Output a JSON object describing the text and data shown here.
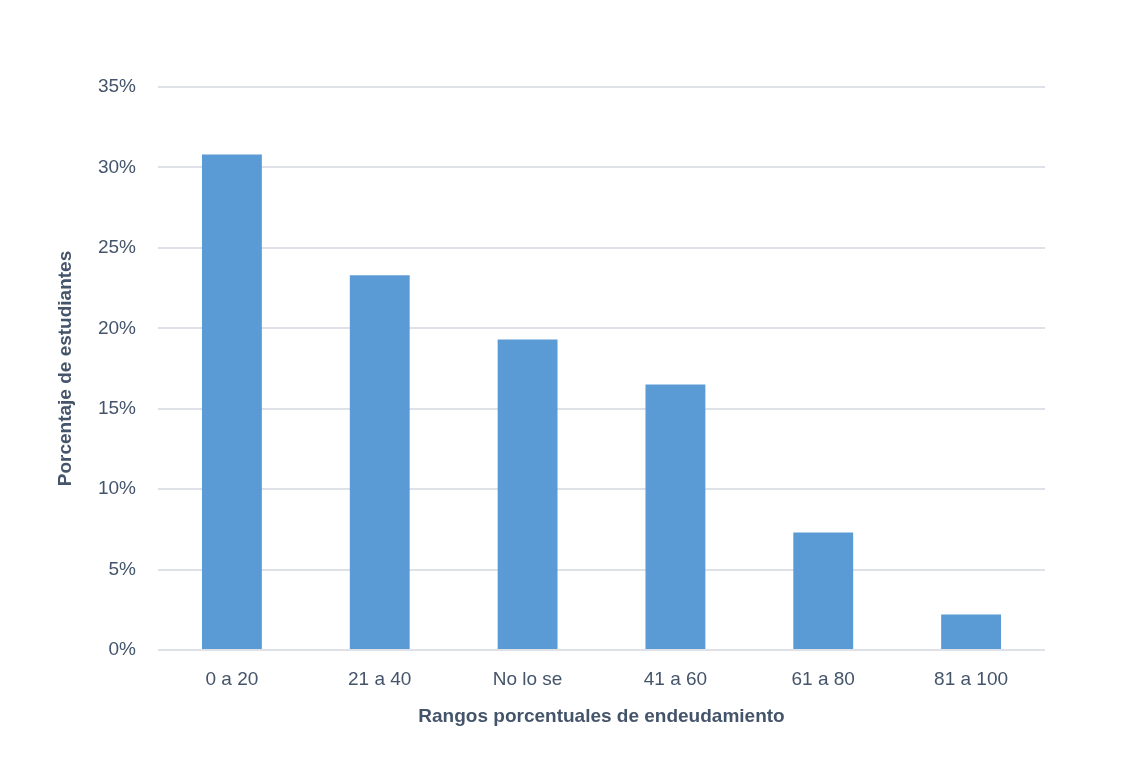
{
  "chart_data": {
    "type": "bar",
    "xlabel": "Rangos porcentuales de endeudamiento",
    "ylabel": "Porcentaje de estudiantes",
    "categories": [
      "0 a 20",
      "21 a 40",
      "No lo se",
      "41 a 60",
      "61 a 80",
      "81 a 100"
    ],
    "values": [
      30.8,
      23.3,
      19.3,
      16.5,
      7.3,
      2.2
    ],
    "color": "#5b9bd5",
    "ylim": [
      0,
      35
    ],
    "yticks": [
      {
        "value": 0,
        "label": "0%"
      },
      {
        "value": 5,
        "label": "5%"
      },
      {
        "value": 10,
        "label": "10%"
      },
      {
        "value": 15,
        "label": "15%"
      },
      {
        "value": 20,
        "label": "20%"
      },
      {
        "value": 25,
        "label": "25%"
      },
      {
        "value": 30,
        "label": "30%"
      },
      {
        "value": 35,
        "label": "35%"
      }
    ],
    "grid": "y",
    "legend": false
  }
}
